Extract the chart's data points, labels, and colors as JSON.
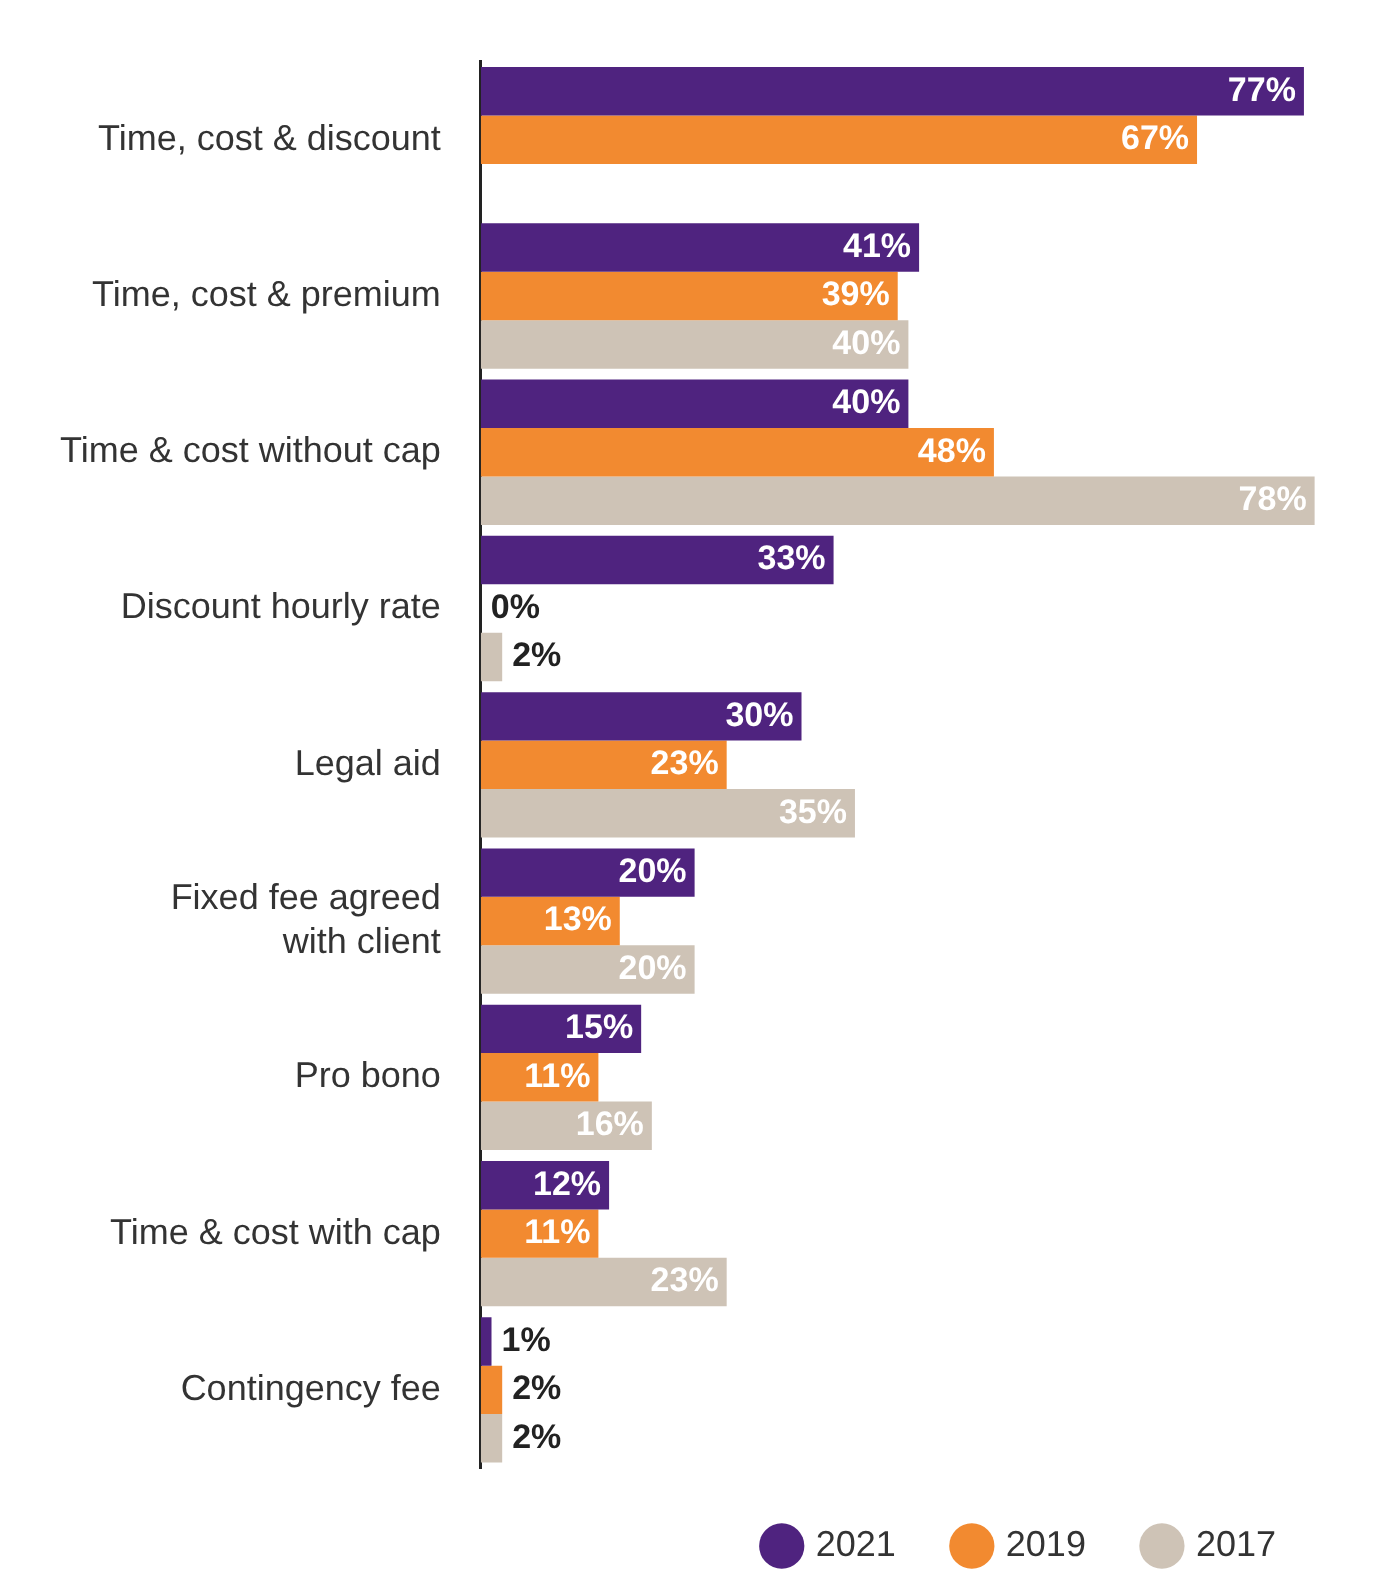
{
  "chart_data": {
    "type": "bar",
    "orientation": "horizontal",
    "categories": [
      "Time, cost & discount",
      "Time, cost & premium",
      "Time & cost without cap",
      "Discount hourly rate",
      "Legal aid",
      "Fixed fee agreed with client",
      "Pro bono",
      "Time & cost with cap",
      "Contingency fee"
    ],
    "series": [
      {
        "name": "2021",
        "color": "#4f237f",
        "values": [
          77,
          41,
          40,
          33,
          30,
          20,
          15,
          12,
          1
        ],
        "value_labels": [
          "77%",
          "41%",
          "40%",
          "33%",
          "30%",
          "20%",
          "15%",
          "12%",
          "1%"
        ]
      },
      {
        "name": "2019",
        "color": "#f28a30",
        "values": [
          67,
          39,
          48,
          0,
          23,
          13,
          11,
          11,
          2
        ],
        "value_labels": [
          "67%",
          "39%",
          "48%",
          "0%",
          "23%",
          "13%",
          "11%",
          "11%",
          "2%"
        ]
      },
      {
        "name": "2017",
        "color": "#cec3b6",
        "values": [
          null,
          40,
          78,
          2,
          35,
          20,
          16,
          23,
          2
        ],
        "value_labels": [
          null,
          "40%",
          "78%",
          "2%",
          "35%",
          "20%",
          "16%",
          "23%",
          "2%"
        ]
      }
    ],
    "grid": false,
    "legend": "bottom right"
  }
}
